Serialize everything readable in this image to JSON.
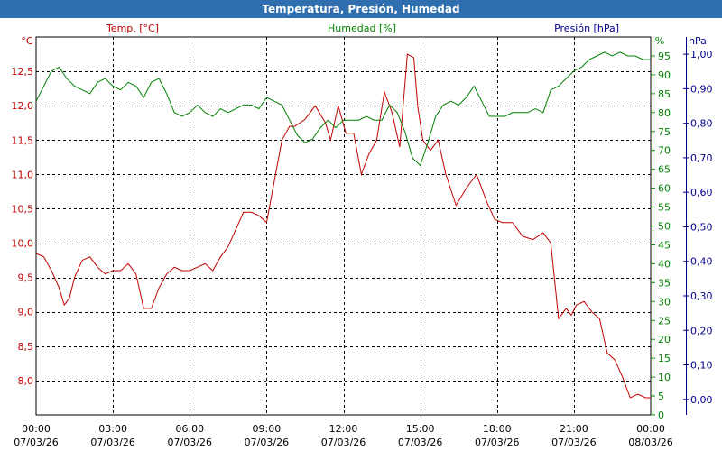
{
  "window": {
    "title": "Temperatura, Presión, Humedad"
  },
  "chart_data": {
    "type": "line",
    "title": "Temperatura, Presión, Humedad",
    "grid": true,
    "colors": {
      "temp": "#c00000",
      "hum": "#008000",
      "pres": "#00008b",
      "title_bar": "#2f6fb0"
    },
    "x_axis": {
      "unit": "hours",
      "range": [
        0,
        24
      ],
      "ticks": [
        0,
        3,
        6,
        9,
        12,
        15,
        18,
        21,
        24
      ],
      "tick_labels": [
        [
          "00:00",
          "07/03/26"
        ],
        [
          "03:00",
          "07/03/26"
        ],
        [
          "06:00",
          "07/03/26"
        ],
        [
          "09:00",
          "07/03/26"
        ],
        [
          "12:00",
          "07/03/26"
        ],
        [
          "15:00",
          "07/03/26"
        ],
        [
          "18:00",
          "07/03/26"
        ],
        [
          "21:00",
          "07/03/26"
        ],
        [
          "00:00",
          "08/03/26"
        ]
      ]
    },
    "axes": {
      "temp": {
        "unit_label": "°C",
        "legend": "Temp. [°C]",
        "range": [
          7.5,
          13.0
        ],
        "ticks": [
          "8,0",
          "8,5",
          "9,0",
          "9,5",
          "10,0",
          "10,5",
          "11,0",
          "11,5",
          "12,0",
          "12,5"
        ],
        "tick_values": [
          8.0,
          8.5,
          9.0,
          9.5,
          10.0,
          10.5,
          11.0,
          11.5,
          12.0,
          12.5
        ]
      },
      "hum": {
        "unit_label": "%",
        "legend": "Humedad [%]",
        "range": [
          0,
          100
        ],
        "ticks": [
          "0",
          "5",
          "10",
          "15",
          "20",
          "25",
          "30",
          "35",
          "40",
          "45",
          "50",
          "55",
          "60",
          "65",
          "70",
          "75",
          "80",
          "85",
          "90",
          "95"
        ],
        "tick_values": [
          0,
          5,
          10,
          15,
          20,
          25,
          30,
          35,
          40,
          45,
          50,
          55,
          60,
          65,
          70,
          75,
          80,
          85,
          90,
          95
        ]
      },
      "pres": {
        "unit_label": "hPa",
        "legend": "Presión [hPa]",
        "range": [
          -0.045,
          1.05
        ],
        "ticks": [
          "0,00",
          "0,10",
          "0,20",
          "0,30",
          "0,40",
          "0,50",
          "0,60",
          "0,70",
          "0,80",
          "0,90",
          "1,00"
        ],
        "tick_values": [
          0,
          0.1,
          0.2,
          0.3,
          0.4,
          0.5,
          0.6,
          0.7,
          0.8,
          0.9,
          1.0
        ]
      }
    },
    "series": [
      {
        "name": "Temp. [°C]",
        "axis": "temp",
        "x": [
          0,
          0.3,
          0.6,
          0.9,
          1.1,
          1.3,
          1.5,
          1.8,
          2.1,
          2.4,
          2.7,
          3.0,
          3.3,
          3.6,
          3.9,
          4.2,
          4.5,
          4.8,
          5.1,
          5.4,
          5.7,
          6.0,
          6.3,
          6.6,
          6.9,
          7.2,
          7.5,
          7.8,
          8.1,
          8.4,
          8.7,
          9.0,
          9.3,
          9.6,
          9.9,
          10.1,
          10.5,
          10.9,
          11.3,
          11.5,
          11.8,
          12.1,
          12.4,
          12.7,
          13.0,
          13.3,
          13.6,
          13.9,
          14.2,
          14.5,
          14.75,
          14.9,
          15.1,
          15.4,
          15.7,
          16.0,
          16.4,
          16.8,
          17.2,
          17.6,
          17.9,
          18.2,
          18.6,
          19.0,
          19.4,
          19.8,
          20.1,
          20.4,
          20.7,
          20.9,
          21.1,
          21.4,
          21.7,
          22.0,
          22.3,
          22.6,
          22.9,
          23.2,
          23.5,
          23.8,
          24.0
        ],
        "values": [
          9.85,
          9.8,
          9.6,
          9.35,
          9.1,
          9.2,
          9.5,
          9.75,
          9.8,
          9.65,
          9.55,
          9.6,
          9.6,
          9.7,
          9.55,
          9.05,
          9.05,
          9.35,
          9.55,
          9.65,
          9.6,
          9.6,
          9.65,
          9.7,
          9.6,
          9.8,
          9.95,
          10.2,
          10.45,
          10.45,
          10.4,
          10.3,
          10.9,
          11.5,
          11.7,
          11.7,
          11.8,
          12.0,
          11.75,
          11.5,
          12.0,
          11.6,
          11.6,
          11.0,
          11.3,
          11.5,
          12.2,
          11.9,
          11.4,
          12.75,
          12.7,
          12.0,
          11.5,
          11.35,
          11.5,
          11.0,
          10.55,
          10.8,
          11.0,
          10.6,
          10.35,
          10.3,
          10.3,
          10.1,
          10.05,
          10.15,
          10.0,
          8.9,
          9.05,
          8.95,
          9.1,
          9.15,
          9.0,
          8.9,
          8.4,
          8.3,
          8.05,
          7.75,
          7.8,
          7.75,
          7.75
        ]
      },
      {
        "name": "Humedad [%]",
        "axis": "hum",
        "x": [
          0,
          0.3,
          0.6,
          0.9,
          1.2,
          1.5,
          1.8,
          2.1,
          2.4,
          2.7,
          3.0,
          3.3,
          3.6,
          3.9,
          4.2,
          4.5,
          4.8,
          5.1,
          5.4,
          5.7,
          6.0,
          6.3,
          6.6,
          6.9,
          7.2,
          7.5,
          7.8,
          8.1,
          8.4,
          8.7,
          9.0,
          9.3,
          9.6,
          9.9,
          10.2,
          10.5,
          10.8,
          11.1,
          11.4,
          11.7,
          12.0,
          12.3,
          12.6,
          12.9,
          13.2,
          13.5,
          13.8,
          14.1,
          14.4,
          14.7,
          15.0,
          15.3,
          15.6,
          15.9,
          16.2,
          16.5,
          16.8,
          17.1,
          17.4,
          17.7,
          18.0,
          18.3,
          18.6,
          18.9,
          19.2,
          19.5,
          19.8,
          20.1,
          20.4,
          20.7,
          21.0,
          21.3,
          21.6,
          21.9,
          22.2,
          22.5,
          22.8,
          23.1,
          23.4,
          23.7,
          24.0
        ],
        "values": [
          83,
          87,
          91,
          92,
          89,
          87,
          86,
          85,
          88,
          89,
          87,
          86,
          88,
          87,
          84,
          88,
          89,
          85,
          80,
          79,
          80,
          82,
          80,
          79,
          81,
          80,
          81,
          82,
          82,
          81,
          84,
          83,
          82,
          78,
          74,
          72,
          73,
          76,
          78,
          76,
          78,
          78,
          78,
          79,
          78,
          78,
          82,
          80,
          75,
          68,
          66,
          72,
          79,
          82,
          83,
          82,
          84,
          87,
          83,
          79,
          79,
          79,
          80,
          80,
          80,
          81,
          80,
          86,
          87,
          89,
          91,
          92,
          94,
          95,
          96,
          95,
          96,
          95,
          95,
          94,
          94
        ]
      }
    ]
  }
}
